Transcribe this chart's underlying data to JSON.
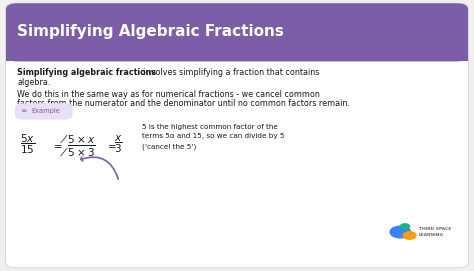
{
  "title": "Simplifying Algebraic Fractions",
  "header_bg": "#7B5EA7",
  "header_text_color": "#ffffff",
  "body_bg": "#ffffff",
  "body_text_color": "#1a1a1a",
  "purple_color": "#7B5EA7",
  "example_bg": "#e8e0f5",
  "line1_bold": "Simplifying algebraic fractions",
  "line1_rest": " involves simplifying a fraction that contains",
  "line1b": "algebra.",
  "line2a": "We do this in the same way as for numerical fractions - we cancel common",
  "line2b": "factors from the numerator and the denominator until no common factors remain.",
  "note_line1": "5 is the highest common factor of the",
  "note_line2": "terms 5α and 15, so we can divide by 5",
  "note_line3": "('cancel the 5')",
  "fig_width": 4.74,
  "fig_height": 2.71,
  "dpi": 100
}
